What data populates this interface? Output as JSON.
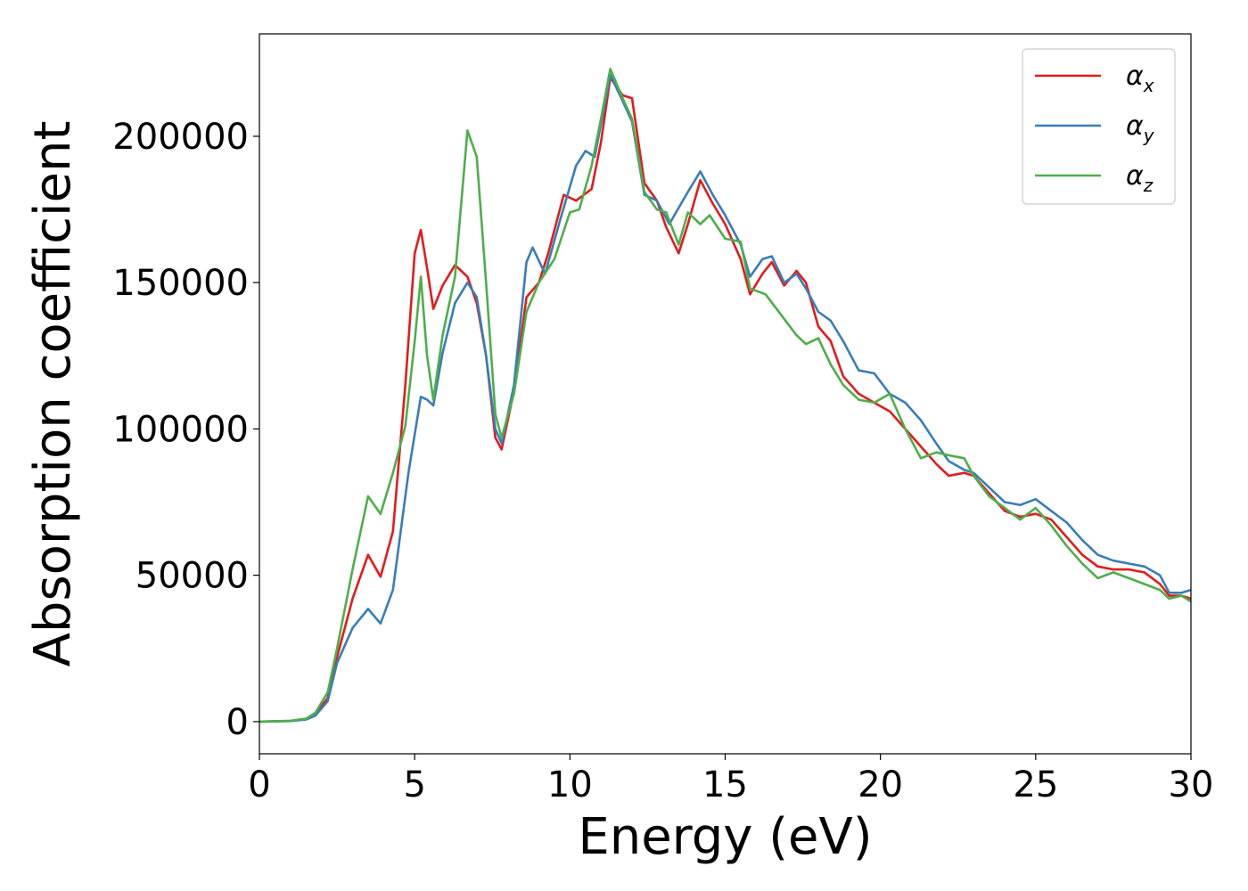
{
  "chart_data": {
    "type": "line",
    "xlabel": "Energy (eV)",
    "ylabel": "Absorption coefficient",
    "xlim": [
      0,
      30
    ],
    "ylim": [
      -11000,
      235000
    ],
    "xticks": [
      0,
      5,
      10,
      15,
      20,
      25,
      30
    ],
    "yticks": [
      0,
      50000,
      100000,
      150000,
      200000
    ],
    "grid": false,
    "legend_position": "top-right",
    "series": [
      {
        "name": "α_x",
        "legend_symbol": "α",
        "legend_subscript": "x",
        "color": "#e41a1c",
        "points": [
          [
            0,
            0
          ],
          [
            1,
            200
          ],
          [
            1.5,
            800
          ],
          [
            1.8,
            2500
          ],
          [
            2.2,
            8000
          ],
          [
            2.5,
            22000
          ],
          [
            3,
            42000
          ],
          [
            3.5,
            57000
          ],
          [
            3.9,
            49500
          ],
          [
            4.3,
            65000
          ],
          [
            4.7,
            115000
          ],
          [
            5,
            160000
          ],
          [
            5.2,
            168000
          ],
          [
            5.4,
            155000
          ],
          [
            5.6,
            141000
          ],
          [
            5.9,
            149000
          ],
          [
            6.3,
            156000
          ],
          [
            6.7,
            152000
          ],
          [
            7,
            143000
          ],
          [
            7.3,
            125000
          ],
          [
            7.6,
            97000
          ],
          [
            7.8,
            93000
          ],
          [
            8.2,
            113000
          ],
          [
            8.6,
            145000
          ],
          [
            9,
            150000
          ],
          [
            9.3,
            160000
          ],
          [
            9.8,
            180000
          ],
          [
            10.2,
            178000
          ],
          [
            10.7,
            182000
          ],
          [
            11,
            198000
          ],
          [
            11.3,
            220000
          ],
          [
            11.7,
            214000
          ],
          [
            12,
            213000
          ],
          [
            12.4,
            184000
          ],
          [
            12.8,
            178000
          ],
          [
            13.1,
            169000
          ],
          [
            13.5,
            160000
          ],
          [
            13.8,
            170000
          ],
          [
            14.2,
            185000
          ],
          [
            14.6,
            177000
          ],
          [
            15,
            170000
          ],
          [
            15.5,
            158000
          ],
          [
            15.8,
            146000
          ],
          [
            16.2,
            153000
          ],
          [
            16.5,
            157000
          ],
          [
            16.9,
            149000
          ],
          [
            17.3,
            154000
          ],
          [
            17.6,
            150000
          ],
          [
            18,
            135000
          ],
          [
            18.4,
            130000
          ],
          [
            18.8,
            118000
          ],
          [
            19.3,
            112000
          ],
          [
            19.8,
            109000
          ],
          [
            20.3,
            106000
          ],
          [
            20.8,
            100000
          ],
          [
            21.3,
            94000
          ],
          [
            21.8,
            88000
          ],
          [
            22.2,
            84000
          ],
          [
            22.7,
            85000
          ],
          [
            23,
            84000
          ],
          [
            23.5,
            78000
          ],
          [
            24,
            72000
          ],
          [
            24.5,
            70000
          ],
          [
            25,
            71000
          ],
          [
            25.5,
            69000
          ],
          [
            26,
            63000
          ],
          [
            26.5,
            57000
          ],
          [
            27,
            53000
          ],
          [
            27.5,
            52000
          ],
          [
            28,
            52000
          ],
          [
            28.5,
            51000
          ],
          [
            29,
            47000
          ],
          [
            29.3,
            43000
          ],
          [
            29.7,
            43000
          ],
          [
            30,
            42000
          ]
        ]
      },
      {
        "name": "α_y",
        "legend_symbol": "α",
        "legend_subscript": "y",
        "color": "#377eb8",
        "points": [
          [
            0,
            0
          ],
          [
            1,
            200
          ],
          [
            1.5,
            700
          ],
          [
            1.8,
            2000
          ],
          [
            2.2,
            7000
          ],
          [
            2.5,
            20000
          ],
          [
            3,
            32000
          ],
          [
            3.5,
            38500
          ],
          [
            3.9,
            33500
          ],
          [
            4.3,
            45000
          ],
          [
            4.8,
            85000
          ],
          [
            5.2,
            111000
          ],
          [
            5.4,
            110000
          ],
          [
            5.6,
            108000
          ],
          [
            5.9,
            126000
          ],
          [
            6.3,
            143000
          ],
          [
            6.7,
            150000
          ],
          [
            7,
            145000
          ],
          [
            7.3,
            125000
          ],
          [
            7.6,
            100000
          ],
          [
            7.8,
            95000
          ],
          [
            8.2,
            115000
          ],
          [
            8.6,
            157000
          ],
          [
            8.8,
            162000
          ],
          [
            9.2,
            153000
          ],
          [
            9.7,
            172000
          ],
          [
            10.2,
            190000
          ],
          [
            10.5,
            195000
          ],
          [
            10.8,
            193000
          ],
          [
            11.3,
            221000
          ],
          [
            11.7,
            212000
          ],
          [
            12,
            205000
          ],
          [
            12.4,
            180000
          ],
          [
            12.8,
            178000
          ],
          [
            13.2,
            170000
          ],
          [
            13.8,
            181000
          ],
          [
            14.2,
            188000
          ],
          [
            14.6,
            180000
          ],
          [
            15,
            173000
          ],
          [
            15.5,
            163000
          ],
          [
            15.8,
            152000
          ],
          [
            16.2,
            158000
          ],
          [
            16.5,
            159000
          ],
          [
            16.9,
            150000
          ],
          [
            17.3,
            153000
          ],
          [
            17.6,
            148000
          ],
          [
            18,
            140000
          ],
          [
            18.4,
            137000
          ],
          [
            18.8,
            130000
          ],
          [
            19.3,
            120000
          ],
          [
            19.8,
            119000
          ],
          [
            20.3,
            112000
          ],
          [
            20.8,
            109000
          ],
          [
            21.3,
            103000
          ],
          [
            21.8,
            95000
          ],
          [
            22.2,
            89000
          ],
          [
            22.7,
            86000
          ],
          [
            23,
            85000
          ],
          [
            23.5,
            80000
          ],
          [
            24,
            75000
          ],
          [
            24.5,
            74000
          ],
          [
            25,
            76000
          ],
          [
            25.5,
            72000
          ],
          [
            26,
            68000
          ],
          [
            26.5,
            62000
          ],
          [
            27,
            57000
          ],
          [
            27.5,
            55000
          ],
          [
            28,
            54000
          ],
          [
            28.5,
            53000
          ],
          [
            29,
            50000
          ],
          [
            29.3,
            44000
          ],
          [
            29.7,
            44000
          ],
          [
            30,
            45000
          ]
        ]
      },
      {
        "name": "α_z",
        "legend_symbol": "α",
        "legend_subscript": "z",
        "color": "#4daf4a",
        "points": [
          [
            0,
            0
          ],
          [
            1,
            300
          ],
          [
            1.5,
            1000
          ],
          [
            1.8,
            3000
          ],
          [
            2.2,
            10000
          ],
          [
            2.5,
            25000
          ],
          [
            3,
            52000
          ],
          [
            3.5,
            77000
          ],
          [
            3.9,
            71000
          ],
          [
            4.3,
            85000
          ],
          [
            4.7,
            101000
          ],
          [
            5,
            130000
          ],
          [
            5.2,
            152000
          ],
          [
            5.4,
            125000
          ],
          [
            5.6,
            110000
          ],
          [
            5.9,
            132000
          ],
          [
            6.3,
            152000
          ],
          [
            6.7,
            202000
          ],
          [
            7,
            193000
          ],
          [
            7.3,
            150000
          ],
          [
            7.6,
            105000
          ],
          [
            7.8,
            97000
          ],
          [
            8.2,
            112000
          ],
          [
            8.6,
            140000
          ],
          [
            9,
            150000
          ],
          [
            9.5,
            158000
          ],
          [
            10,
            174000
          ],
          [
            10.3,
            175000
          ],
          [
            10.7,
            190000
          ],
          [
            11,
            206000
          ],
          [
            11.3,
            223000
          ],
          [
            11.7,
            213000
          ],
          [
            12,
            206000
          ],
          [
            12.4,
            181000
          ],
          [
            12.8,
            175000
          ],
          [
            13.1,
            174000
          ],
          [
            13.5,
            163000
          ],
          [
            13.8,
            174000
          ],
          [
            14.2,
            170000
          ],
          [
            14.5,
            173000
          ],
          [
            15,
            165000
          ],
          [
            15.5,
            164000
          ],
          [
            15.8,
            148000
          ],
          [
            16.3,
            146000
          ],
          [
            16.8,
            139000
          ],
          [
            17.3,
            132000
          ],
          [
            17.6,
            129000
          ],
          [
            18,
            131000
          ],
          [
            18.4,
            122000
          ],
          [
            18.8,
            115000
          ],
          [
            19.3,
            110000
          ],
          [
            19.8,
            109000
          ],
          [
            20.3,
            112000
          ],
          [
            20.8,
            100000
          ],
          [
            21.3,
            90000
          ],
          [
            21.8,
            92000
          ],
          [
            22.2,
            91000
          ],
          [
            22.7,
            90000
          ],
          [
            23,
            84000
          ],
          [
            23.5,
            77000
          ],
          [
            24,
            73000
          ],
          [
            24.5,
            69000
          ],
          [
            25,
            73000
          ],
          [
            25.5,
            67000
          ],
          [
            26,
            60000
          ],
          [
            26.5,
            54000
          ],
          [
            27,
            49000
          ],
          [
            27.5,
            51000
          ],
          [
            28,
            49000
          ],
          [
            28.5,
            47000
          ],
          [
            29,
            45000
          ],
          [
            29.3,
            42000
          ],
          [
            29.7,
            43000
          ],
          [
            30,
            41000
          ]
        ]
      }
    ]
  }
}
